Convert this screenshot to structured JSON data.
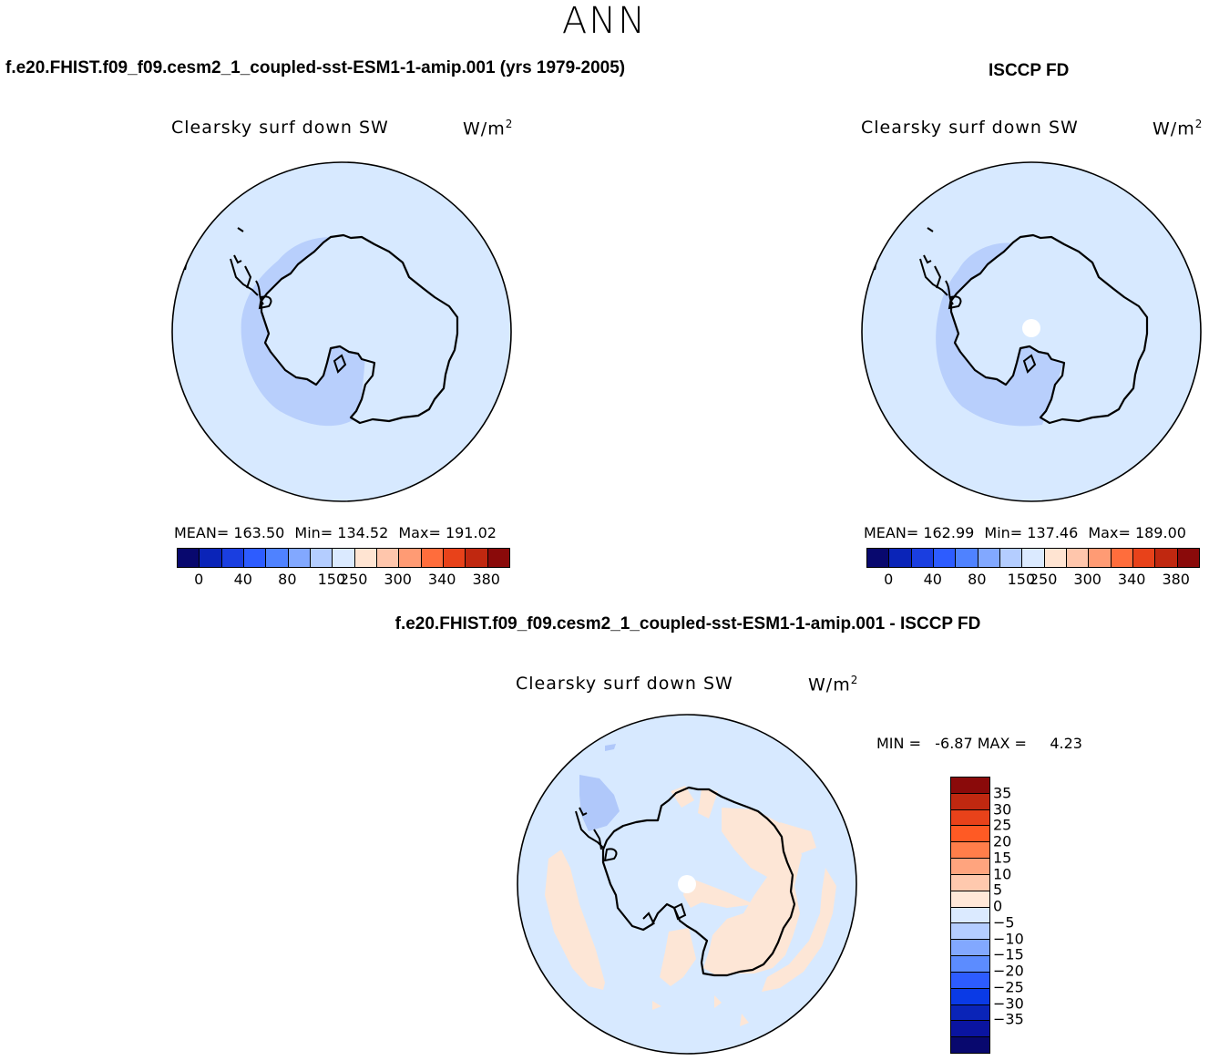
{
  "season": "ANN",
  "panels": [
    {
      "title": "f.e20.FHIST.f09_f09.cesm2_1_coupled-sst-ESM1-1-amip.001 (yrs 1979-2005)",
      "variable": "Clearsky surf down SW",
      "units": "W/m",
      "units_exp": "2",
      "mean": "MEAN= 163.50",
      "min": "Min= 134.52",
      "max": "Max= 191.02"
    },
    {
      "title": "ISCCP FD",
      "variable": "Clearsky surf down SW",
      "units": "W/m",
      "units_exp": "2",
      "mean": "MEAN= 162.99",
      "min": "Min= 137.46",
      "max": "Max= 189.00"
    },
    {
      "title": "f.e20.FHIST.f09_f09.cesm2_1_coupled-sst-ESM1-1-amip.001 - ISCCP FD",
      "variable": "Clearsky surf down SW",
      "units": "W/m",
      "units_exp": "2",
      "minmax": "MIN =   -6.87 MAX =     4.23"
    }
  ],
  "colorbar_main": {
    "colors": [
      "#08086e",
      "#0a24b8",
      "#1a3ee0",
      "#2d5cff",
      "#4f82ff",
      "#82a8ff",
      "#b4cdff",
      "#dbeaff",
      "#ffe4d2",
      "#ffc6ac",
      "#ff9b74",
      "#ff6d3c",
      "#e8421a",
      "#c02810",
      "#8a0a0a"
    ],
    "tick_labels": [
      "0",
      "40",
      "80",
      "150",
      "250",
      "300",
      "340",
      "380"
    ]
  },
  "colorbar_diff": {
    "colors_top_to_bottom": [
      "#8a0a0a",
      "#c02810",
      "#e8421a",
      "#ff5a24",
      "#ff7e4a",
      "#ffa47e",
      "#ffc9ae",
      "#ffe8d8",
      "#dbeaff",
      "#b4cdff",
      "#82a8ff",
      "#5c8cff",
      "#2d5cff",
      "#0a3ae6",
      "#0a24b8",
      "#0a14a0",
      "#08086e"
    ],
    "tick_labels_top_to_bottom": [
      "35",
      "30",
      "25",
      "20",
      "15",
      "10",
      "5",
      "0",
      "−5",
      "−10",
      "−15",
      "−20",
      "−25",
      "−30",
      "−35"
    ]
  },
  "map_colors": {
    "ocean": "#d7e9ff",
    "coast_band": "#b8cffc",
    "pos_anom": "#fde6d6",
    "neg_anom": "#b0c8fa",
    "missing": "#ffffff",
    "coastline": "#000000"
  }
}
